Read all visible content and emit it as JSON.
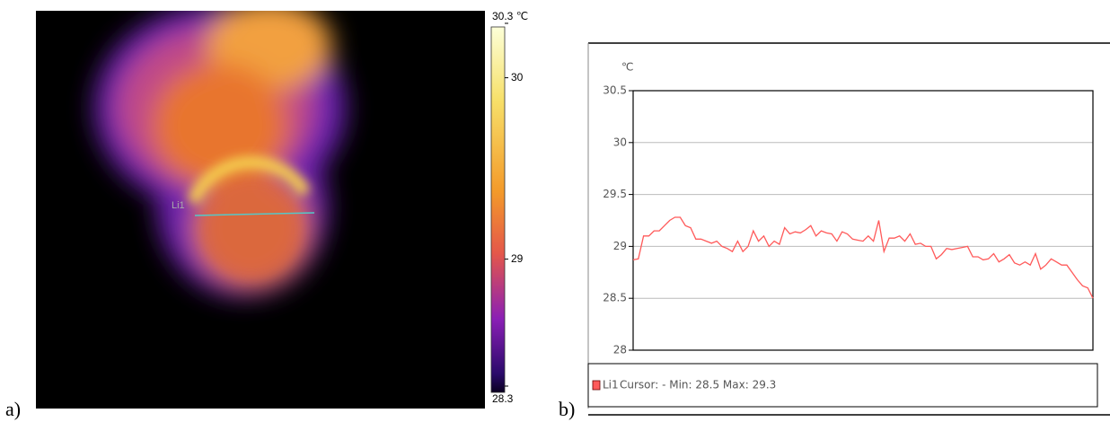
{
  "chart_data": [
    {
      "type": "image",
      "panel_label": "a)",
      "annotation": "Li1",
      "colorbar_lim": [
        28.3,
        30.3
      ],
      "colorbar_ticks": [
        {
          "value": 30.3,
          "label": "30.3 ℃"
        },
        30,
        29,
        28.3
      ]
    },
    {
      "type": "line",
      "panel_label": "b)",
      "y_label": "℃",
      "ylim": [
        28,
        30.5
      ],
      "yticks": [
        28,
        28.5,
        29,
        29.5,
        30,
        30.5
      ],
      "grid": true,
      "legend_text": "Cursor: - Min: 28.5 Max: 29.3",
      "series": [
        {
          "name": "Li1",
          "color": "#ff5a5a",
          "values": [
            28.87,
            28.88,
            29.1,
            29.1,
            29.15,
            29.15,
            29.2,
            29.25,
            29.28,
            29.28,
            29.2,
            29.18,
            29.07,
            29.07,
            29.05,
            29.03,
            29.05,
            29.0,
            28.98,
            28.95,
            29.05,
            28.95,
            29.0,
            29.15,
            29.05,
            29.1,
            29.0,
            29.05,
            29.02,
            29.18,
            29.12,
            29.14,
            29.13,
            29.16,
            29.2,
            29.1,
            29.15,
            29.13,
            29.12,
            29.05,
            29.14,
            29.12,
            29.07,
            29.06,
            29.05,
            29.1,
            29.05,
            29.25,
            28.95,
            29.08,
            29.08,
            29.1,
            29.05,
            29.12,
            29.02,
            29.03,
            29.0,
            29.0,
            28.88,
            28.92,
            28.98,
            28.97,
            28.98,
            28.99,
            29.0,
            28.9,
            28.9,
            28.87,
            28.88,
            28.93,
            28.85,
            28.88,
            28.92,
            28.84,
            28.82,
            28.85,
            28.82,
            28.93,
            28.78,
            28.82,
            28.88,
            28.85,
            28.82,
            28.82,
            28.75,
            28.68,
            28.62,
            28.6,
            28.5
          ]
        }
      ]
    }
  ]
}
